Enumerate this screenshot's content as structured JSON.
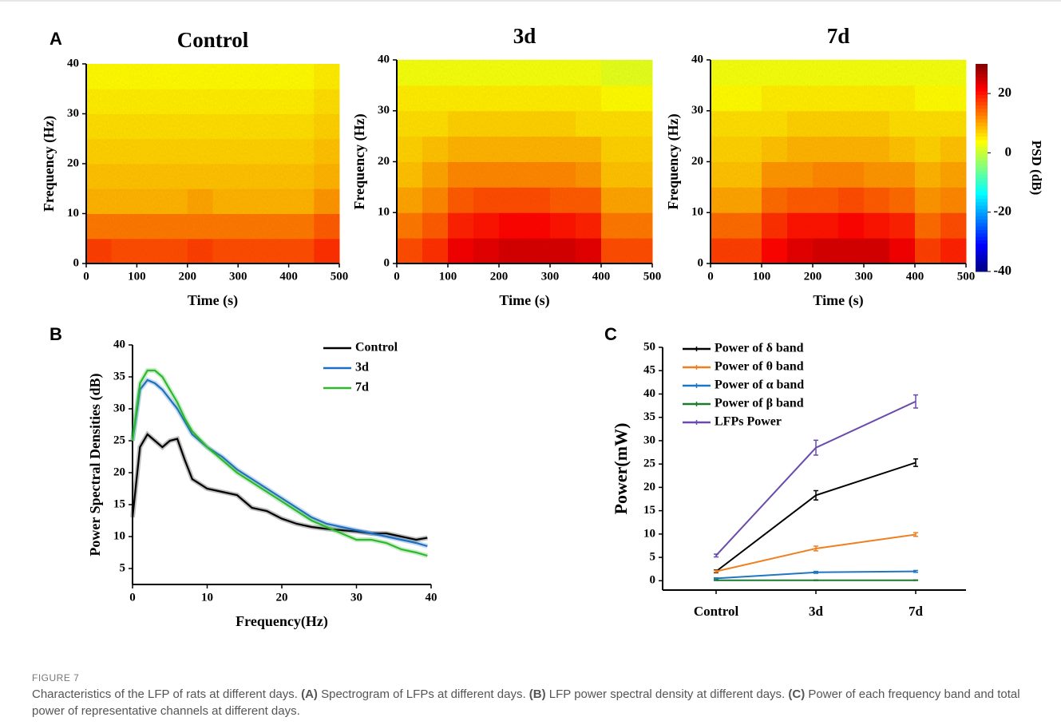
{
  "chart_data": [
    {
      "type": "spectrogram",
      "panel": "A",
      "title": "Control",
      "xlabel": "Time (s)",
      "ylabel": "Frequency (Hz)",
      "xlim": [
        0,
        500
      ],
      "xticks": [
        0,
        100,
        200,
        300,
        400,
        500
      ],
      "ylim": [
        0,
        40
      ],
      "yticks": [
        0,
        10,
        20,
        30,
        40
      ],
      "clim": [
        -40,
        30
      ],
      "values": [
        [
          17,
          16,
          16,
          16,
          17,
          16,
          16,
          16,
          16,
          18
        ],
        [
          13,
          13,
          13,
          13,
          13,
          13,
          13,
          13,
          13,
          15
        ],
        [
          9,
          9,
          9,
          9,
          10,
          9,
          9,
          9,
          9,
          11
        ],
        [
          8,
          8,
          8,
          8,
          8,
          8,
          8,
          8,
          8,
          9
        ],
        [
          7,
          7,
          7,
          7,
          7,
          7,
          7,
          7,
          7,
          8
        ],
        [
          6,
          6,
          6,
          6,
          6,
          6,
          6,
          6,
          6,
          7
        ],
        [
          5,
          5,
          5,
          5,
          5,
          5,
          5,
          5,
          5,
          6
        ],
        [
          4,
          4,
          4,
          4,
          4,
          4,
          4,
          4,
          4,
          5
        ]
      ]
    },
    {
      "type": "spectrogram",
      "title": "3d",
      "xlabel": "Time (s)",
      "ylabel": "Frequency (Hz)",
      "xlim": [
        0,
        500
      ],
      "xticks": [
        0,
        100,
        200,
        300,
        400,
        500
      ],
      "ylim": [
        0,
        40
      ],
      "yticks": [
        0,
        10,
        20,
        30,
        40
      ],
      "clim": [
        -40,
        30
      ],
      "values": [
        [
          16,
          18,
          22,
          23,
          24,
          24,
          24,
          23,
          16,
          16
        ],
        [
          13,
          15,
          19,
          20,
          21,
          21,
          20,
          19,
          13,
          13
        ],
        [
          10,
          12,
          15,
          16,
          16,
          16,
          15,
          15,
          10,
          10
        ],
        [
          8,
          10,
          12,
          12,
          12,
          12,
          12,
          11,
          8,
          8
        ],
        [
          7,
          8,
          9,
          9,
          9,
          9,
          9,
          9,
          7,
          7
        ],
        [
          6,
          6,
          7,
          7,
          7,
          7,
          7,
          6,
          6,
          6
        ],
        [
          5,
          5,
          5,
          5,
          5,
          5,
          5,
          5,
          4,
          4
        ],
        [
          3,
          3,
          3,
          3,
          3,
          3,
          3,
          3,
          2,
          2
        ]
      ]
    },
    {
      "type": "spectrogram",
      "title": "7d",
      "xlabel": "Time (s)",
      "ylabel": "Frequency (Hz)",
      "xlim": [
        0,
        500
      ],
      "xticks": [
        0,
        100,
        200,
        300,
        400,
        500
      ],
      "ylim": [
        0,
        40
      ],
      "yticks": [
        0,
        10,
        20,
        30,
        40
      ],
      "clim": [
        -40,
        30
      ],
      "values": [
        [
          17,
          17,
          21,
          23,
          24,
          24,
          24,
          22,
          17,
          19
        ],
        [
          14,
          14,
          18,
          20,
          20,
          21,
          20,
          19,
          14,
          16
        ],
        [
          10,
          10,
          14,
          15,
          15,
          16,
          15,
          14,
          11,
          12
        ],
        [
          8,
          8,
          11,
          11,
          12,
          12,
          11,
          11,
          9,
          10
        ],
        [
          7,
          7,
          8,
          9,
          9,
          9,
          9,
          8,
          7,
          8
        ],
        [
          6,
          6,
          6,
          7,
          7,
          7,
          7,
          6,
          6,
          6
        ],
        [
          4,
          4,
          5,
          5,
          5,
          5,
          5,
          5,
          4,
          4
        ],
        [
          3,
          3,
          3,
          3,
          3,
          3,
          3,
          3,
          3,
          3
        ]
      ],
      "colorbar": {
        "label": "PSD (dB)",
        "ticks": [
          -40,
          -20,
          0,
          20
        ]
      }
    },
    {
      "type": "line",
      "panel": "B",
      "xlabel": "Frequency(Hz)",
      "ylabel": "Power Spectral Densities (dB)",
      "xlim": [
        0,
        40
      ],
      "xticks": [
        0,
        10,
        20,
        30,
        40
      ],
      "ylim": [
        2.5,
        40
      ],
      "yticks": [
        5,
        10,
        15,
        20,
        25,
        30,
        35,
        40
      ],
      "x": [
        0,
        1,
        2,
        3,
        4,
        5,
        6,
        7,
        8,
        10,
        12,
        14,
        16,
        18,
        20,
        22,
        24,
        26,
        28,
        30,
        32,
        34,
        36,
        38,
        39.5
      ],
      "series": [
        {
          "name": "Control",
          "color": "#000000",
          "values": [
            13,
            24,
            26,
            25,
            24,
            25,
            25.3,
            22,
            19,
            17.5,
            17,
            16.5,
            14.5,
            14,
            12.8,
            12,
            11.5,
            11.2,
            11,
            10.8,
            10.5,
            10.5,
            10,
            9.5,
            9.8
          ]
        },
        {
          "name": "3d",
          "color": "#1f6fc0",
          "values": [
            25,
            33,
            34.5,
            34,
            33,
            31.5,
            30,
            28,
            26,
            24,
            22.5,
            20.5,
            19,
            17.5,
            16,
            14.5,
            13,
            12,
            11.5,
            11,
            10.5,
            10,
            9.5,
            9,
            8.5
          ]
        },
        {
          "name": "7d",
          "color": "#2eb82e",
          "values": [
            25,
            34,
            36,
            36,
            35,
            33,
            31,
            28.5,
            26.5,
            24,
            22,
            20,
            18.5,
            17,
            15.5,
            14,
            12.5,
            11.5,
            10.5,
            9.5,
            9.5,
            9,
            8,
            7.5,
            7
          ]
        }
      ]
    },
    {
      "type": "errorline",
      "panel": "C",
      "ylabel": "Power(mW)",
      "categories": [
        "Control",
        "3d",
        "7d"
      ],
      "ylim": [
        -2,
        50
      ],
      "yticks": [
        0,
        5,
        10,
        15,
        20,
        25,
        30,
        35,
        40,
        45,
        50
      ],
      "series": [
        {
          "name": "Power of δ band",
          "color": "#000000",
          "values": [
            2,
            18.3,
            25.3
          ],
          "errors": [
            0.3,
            1,
            0.8
          ]
        },
        {
          "name": "Power of θ band",
          "color": "#f07f1f",
          "values": [
            2,
            6.9,
            9.9
          ],
          "errors": [
            0.2,
            0.5,
            0.4
          ]
        },
        {
          "name": "Power of α band",
          "color": "#1f77c4",
          "values": [
            0.5,
            1.8,
            2
          ],
          "errors": [
            0.1,
            0.2,
            0.2
          ]
        },
        {
          "name": "Power of β band",
          "color": "#1a7a2e",
          "values": [
            0.1,
            0.1,
            0.1
          ],
          "errors": [
            0.05,
            0.05,
            0.05
          ]
        },
        {
          "name": "LFPs Power",
          "color": "#6a4bab",
          "values": [
            5.4,
            28.5,
            38.4
          ],
          "errors": [
            0.3,
            1.6,
            1.4
          ]
        }
      ]
    }
  ],
  "caption": {
    "label": "FIGURE 7",
    "text": [
      "Characteristics of the LFP of rats at different days. ",
      "(A)",
      " Spectrogram of LFPs at different days. ",
      "(B)",
      " LFP power spectral density at different days. ",
      "(C)",
      " Power of each frequency band and total power of representative channels at different days."
    ]
  }
}
